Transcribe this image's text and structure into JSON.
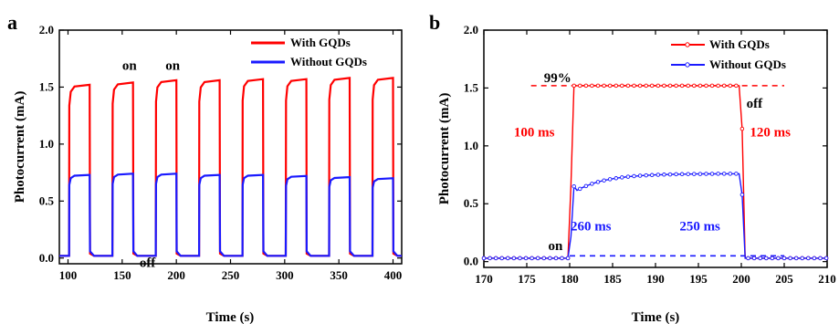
{
  "colors": {
    "red": "#ff0000",
    "blue": "#1a1aff",
    "black": "#000000"
  },
  "chart_data": [
    {
      "panel": "a",
      "type": "line",
      "xlabel": "Time (s)",
      "ylabel": "Photocurrent (mA)",
      "xlim": [
        92,
        408
      ],
      "ylim": [
        -0.05,
        2.0
      ],
      "xticks": [
        100,
        150,
        200,
        250,
        300,
        350,
        400
      ],
      "yticks": [
        0.0,
        0.5,
        1.0,
        1.5,
        2.0
      ],
      "legend_position": "top-right",
      "series": [
        {
          "name": "With GQDs",
          "color": "#ff0000",
          "on_levels": [
            1.52,
            1.54,
            1.56,
            1.56,
            1.57,
            1.57,
            1.58,
            1.58
          ]
        },
        {
          "name": "Without GQDs",
          "color": "#1a1aff",
          "on_levels": [
            0.73,
            0.74,
            0.74,
            0.73,
            0.73,
            0.72,
            0.71,
            0.7
          ]
        }
      ],
      "on_intervals": [
        [
          101,
          120
        ],
        [
          141,
          160
        ],
        [
          181,
          200
        ],
        [
          221,
          240
        ],
        [
          261,
          280
        ],
        [
          301,
          320
        ],
        [
          341,
          360
        ],
        [
          381,
          400
        ]
      ],
      "off_level": 0.02,
      "annotations": [
        {
          "text": "on",
          "x": 150,
          "y": 1.65,
          "color": "#000000"
        },
        {
          "text": "on",
          "x": 190,
          "y": 1.65,
          "color": "#000000"
        },
        {
          "text": "off",
          "x": 166,
          "y": -0.08,
          "color": "#000000"
        }
      ]
    },
    {
      "panel": "b",
      "type": "line",
      "xlabel": "Time (s)",
      "ylabel": "Photocurrent (mA)",
      "xlim": [
        170,
        210
      ],
      "ylim": [
        -0.05,
        2.0
      ],
      "xticks": [
        170,
        175,
        180,
        185,
        190,
        195,
        200,
        205,
        210
      ],
      "yticks": [
        0.0,
        0.5,
        1.0,
        1.5,
        2.0
      ],
      "legend_position": "top-right",
      "series": [
        {
          "name": "With GQDs",
          "color": "#ff0000",
          "baseline": 0.03,
          "plateau": 1.52,
          "rise": [
            180.0,
            180.3
          ],
          "fall": [
            200.0,
            200.4
          ]
        },
        {
          "name": "Without GQDs",
          "color": "#1a1aff",
          "baseline": 0.03,
          "plateau": 0.76,
          "rise": [
            180.0,
            180.5
          ],
          "fall": [
            200.0,
            200.4
          ]
        }
      ],
      "reference_lines": [
        {
          "y": 1.52,
          "x": [
            175.5,
            205
          ],
          "color": "#ff0000"
        },
        {
          "y": 0.05,
          "x": [
            180,
            205
          ],
          "color": "#1a1aff"
        }
      ],
      "annotations": [
        {
          "text": "99%",
          "x": 177.0,
          "y": 1.55,
          "color": "#000000"
        },
        {
          "text": "off",
          "x": 200.6,
          "y": 1.33,
          "color": "#000000"
        },
        {
          "text": "100 ms",
          "x": 173.5,
          "y": 1.08,
          "color": "#ff0000"
        },
        {
          "text": "120 ms",
          "x": 201.0,
          "y": 1.08,
          "color": "#ff0000"
        },
        {
          "text": "260 ms",
          "x": 180.1,
          "y": 0.27,
          "color": "#1a1aff"
        },
        {
          "text": "250 ms",
          "x": 192.8,
          "y": 0.27,
          "color": "#1a1aff"
        },
        {
          "text": "on",
          "x": 177.5,
          "y": 0.1,
          "color": "#000000"
        }
      ]
    }
  ]
}
